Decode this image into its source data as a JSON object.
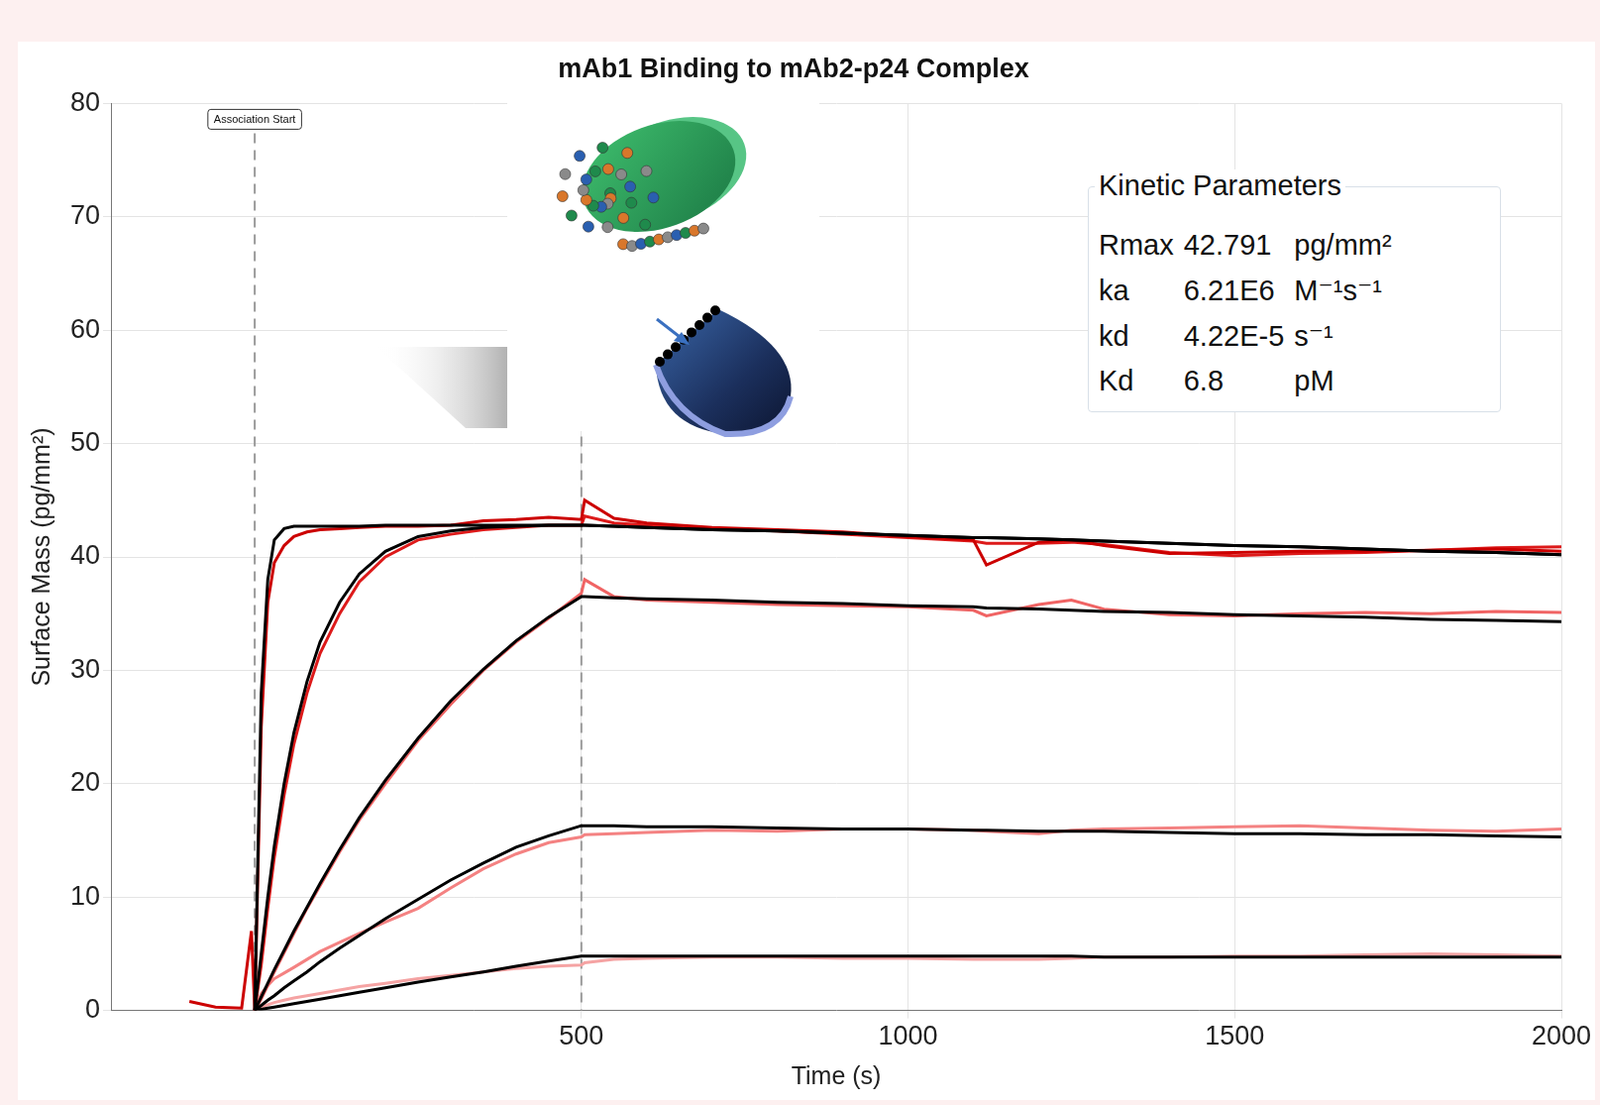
{
  "chart_data": {
    "type": "line",
    "title": "mAb1 Binding to mAb2-p24 Complex",
    "x_label": "Time (s)",
    "y_label": "Surface Mass (pg/mm²)",
    "x": [
      -100,
      -60,
      -20,
      -5,
      0,
      10,
      20,
      30,
      45,
      60,
      80,
      100,
      130,
      160,
      200,
      250,
      300,
      350,
      400,
      450,
      500,
      505,
      550,
      600,
      700,
      800,
      900,
      1000,
      1100,
      1120,
      1200,
      1250,
      1300,
      1400,
      1500,
      1600,
      1700,
      1800,
      1900,
      2000
    ],
    "series": [
      {
        "color": "#000000",
        "values": [
          null,
          null,
          null,
          null,
          0,
          28,
          38,
          41.5,
          42.5,
          42.7,
          42.7,
          42.7,
          42.7,
          42.7,
          42.8,
          42.8,
          42.8,
          42.8,
          42.8,
          42.8,
          42.8,
          42.8,
          42.7,
          42.6,
          42.4,
          42.3,
          42.1,
          41.9,
          41.7,
          41.7,
          41.6,
          41.5,
          41.4,
          41.2,
          41.0,
          40.9,
          40.7,
          40.5,
          40.4,
          40.2
        ]
      },
      {
        "color": "#000000",
        "values": [
          null,
          null,
          null,
          null,
          0,
          5,
          10,
          14.5,
          20,
          24.5,
          29,
          32.5,
          36,
          38.5,
          40.5,
          41.8,
          42.3,
          42.6,
          42.7,
          42.8,
          42.8,
          42.8,
          42.7,
          42.6,
          42.4,
          42.3,
          42.1,
          41.9,
          41.7,
          41.7,
          41.6,
          41.5,
          41.4,
          41.2,
          41.0,
          40.9,
          40.7,
          40.5,
          40.4,
          40.2
        ]
      },
      {
        "color": "#000000",
        "values": [
          null,
          null,
          null,
          null,
          0,
          1.2,
          2.4,
          3.6,
          5.3,
          7,
          9.1,
          11.2,
          14.2,
          17,
          20.3,
          24,
          27.3,
          30.1,
          32.6,
          34.7,
          36.5,
          36.5,
          36.4,
          36.3,
          36.2,
          36.0,
          35.9,
          35.7,
          35.6,
          35.5,
          35.4,
          35.3,
          35.2,
          35.1,
          34.9,
          34.8,
          34.7,
          34.5,
          34.4,
          34.3
        ]
      },
      {
        "color": "#000000",
        "values": [
          null,
          null,
          null,
          null,
          0,
          0.45,
          0.9,
          1.3,
          2,
          2.6,
          3.4,
          4.3,
          5.5,
          6.6,
          8.1,
          9.8,
          11.5,
          13,
          14.4,
          15.4,
          16.3,
          16.3,
          16.3,
          16.2,
          16.2,
          16.1,
          16.0,
          16.0,
          15.9,
          15.9,
          15.8,
          15.8,
          15.8,
          15.7,
          15.6,
          15.6,
          15.5,
          15.5,
          15.4,
          15.3
        ]
      },
      {
        "color": "#000000",
        "values": [
          null,
          null,
          null,
          null,
          0,
          0.1,
          0.2,
          0.3,
          0.45,
          0.6,
          0.8,
          1.0,
          1.3,
          1.6,
          2.0,
          2.5,
          2.95,
          3.4,
          3.9,
          4.35,
          4.8,
          4.8,
          4.8,
          4.8,
          4.8,
          4.8,
          4.8,
          4.8,
          4.8,
          4.8,
          4.8,
          4.8,
          4.7,
          4.7,
          4.7,
          4.7,
          4.7,
          4.7,
          4.7,
          4.7
        ]
      },
      {
        "color": "#cc0000",
        "values": [
          0.8,
          0.3,
          0.2,
          7,
          0,
          25,
          36,
          39.5,
          41,
          41.8,
          42.2,
          42.4,
          42.5,
          42.6,
          42.7,
          42.7,
          42.8,
          43.2,
          43.3,
          43.5,
          43.3,
          45,
          43.4,
          43,
          42.6,
          42.4,
          42.2,
          41.8,
          41.5,
          39.3,
          41.3,
          41.5,
          41.0,
          40.3,
          40.4,
          40.5,
          40.5,
          40.6,
          40.7,
          40.5
        ]
      },
      {
        "color": "#dd1a1a",
        "values": [
          null,
          null,
          null,
          null,
          0,
          4,
          9,
          13.5,
          19,
          23.5,
          28,
          31.5,
          35,
          37.8,
          40,
          41.5,
          42,
          42.4,
          42.6,
          42.8,
          42.8,
          43.6,
          43,
          42.8,
          42.5,
          42.3,
          42,
          41.7,
          41.4,
          41.2,
          41.2,
          41.3,
          41.1,
          40.4,
          40.1,
          40.3,
          40.4,
          40.6,
          40.8,
          40.9
        ]
      },
      {
        "color": "#f06464",
        "values": [
          null,
          null,
          null,
          null,
          0,
          1.0,
          2.2,
          3.4,
          5.1,
          6.8,
          9.0,
          11.0,
          14.0,
          16.8,
          20.0,
          23.8,
          27.0,
          30.0,
          32.5,
          34.6,
          36.8,
          38,
          36.5,
          36.2,
          36,
          35.8,
          35.7,
          35.6,
          35.3,
          34.8,
          35.8,
          36.2,
          35.4,
          34.9,
          34.8,
          35.0,
          35.1,
          35.0,
          35.2,
          35.1
        ]
      },
      {
        "color": "#f48282",
        "values": [
          null,
          null,
          null,
          null,
          0,
          1.5,
          2.2,
          2.8,
          3.3,
          3.8,
          4.5,
          5.2,
          6,
          6.8,
          7.8,
          9,
          10.8,
          12.5,
          13.8,
          14.8,
          15.3,
          15.5,
          15.6,
          15.7,
          15.9,
          15.8,
          16.0,
          16.0,
          15.9,
          15.8,
          15.6,
          15.9,
          16.0,
          16.1,
          16.2,
          16.3,
          16.1,
          15.9,
          15.8,
          16.0
        ]
      },
      {
        "color": "#f5a3a3",
        "values": [
          null,
          null,
          null,
          null,
          0,
          0.3,
          0.5,
          0.7,
          0.9,
          1.1,
          1.3,
          1.5,
          1.8,
          2.1,
          2.4,
          2.8,
          3.1,
          3.4,
          3.7,
          3.9,
          4.0,
          4.2,
          4.5,
          4.6,
          4.7,
          4.7,
          4.6,
          4.6,
          4.5,
          4.5,
          4.5,
          4.6,
          4.7,
          4.7,
          4.8,
          4.8,
          4.9,
          5.0,
          4.9,
          4.8
        ]
      }
    ],
    "xlim": [
      -220,
      2000
    ],
    "xticks": [
      500,
      1000,
      1500,
      2000
    ],
    "ylim": [
      0,
      80
    ],
    "yticks": [
      0,
      10,
      20,
      30,
      40,
      50,
      60,
      70,
      80
    ],
    "grid": true,
    "vlines": [
      0,
      500
    ],
    "annotations": [
      {
        "text": "Association Start",
        "x": 0
      }
    ],
    "kinetic_parameters": {
      "title": "Kinetic Parameters",
      "rows": [
        [
          "Rmax",
          "42.791",
          "pg/mm²"
        ],
        [
          "ka",
          "6.21E6",
          "M⁻¹s⁻¹"
        ],
        [
          "kd",
          "4.22E-5",
          "s⁻¹"
        ],
        [
          "Kd",
          "6.8",
          "pM"
        ]
      ]
    }
  }
}
